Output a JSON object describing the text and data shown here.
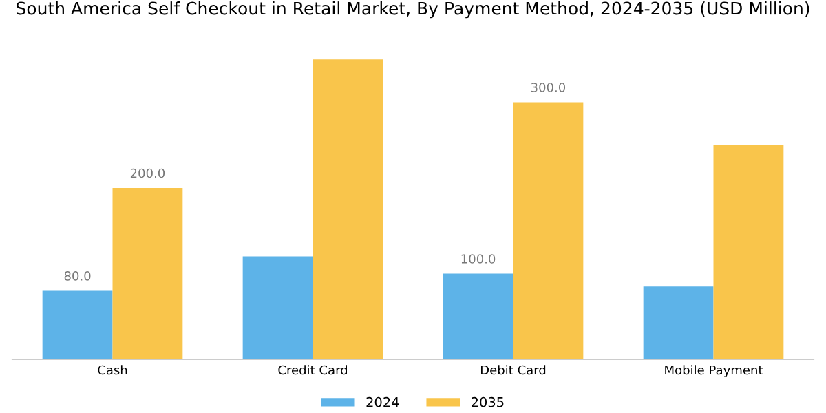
{
  "chart_data": {
    "type": "bar",
    "title": "South America Self Checkout in Retail Market, By Payment Method, 2024-2035 (USD Million)",
    "categories": [
      "Cash",
      "Credit Card",
      "Debit Card",
      "Mobile Payment"
    ],
    "series": [
      {
        "name": "2024",
        "color": "#5db3e8",
        "values": [
          80,
          120,
          100,
          85
        ],
        "value_labels": [
          "80.0",
          null,
          "100.0",
          null
        ]
      },
      {
        "name": "2035",
        "color": "#f9c54b",
        "values": [
          200,
          350,
          300,
          250
        ],
        "value_labels": [
          "200.0",
          null,
          "300.0",
          null
        ]
      }
    ],
    "legend": "bottom",
    "grid": false
  }
}
